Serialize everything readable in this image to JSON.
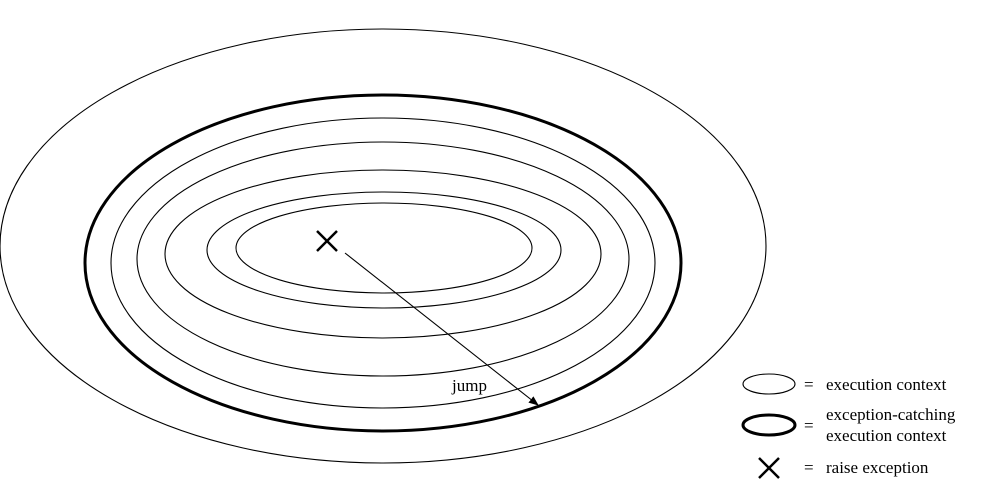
{
  "diagram": {
    "jump_label": "jump",
    "colors": {
      "stroke": "#000000",
      "background": "#ffffff"
    }
  },
  "legend": {
    "execution_context": {
      "eq": "=",
      "label": "execution context"
    },
    "exception_catching": {
      "eq": "=",
      "label_line1": "exception-catching",
      "label_line2": "execution context"
    },
    "raise_exception": {
      "eq": "=",
      "label": "raise exception",
      "icon": "x-cross-icon"
    }
  }
}
